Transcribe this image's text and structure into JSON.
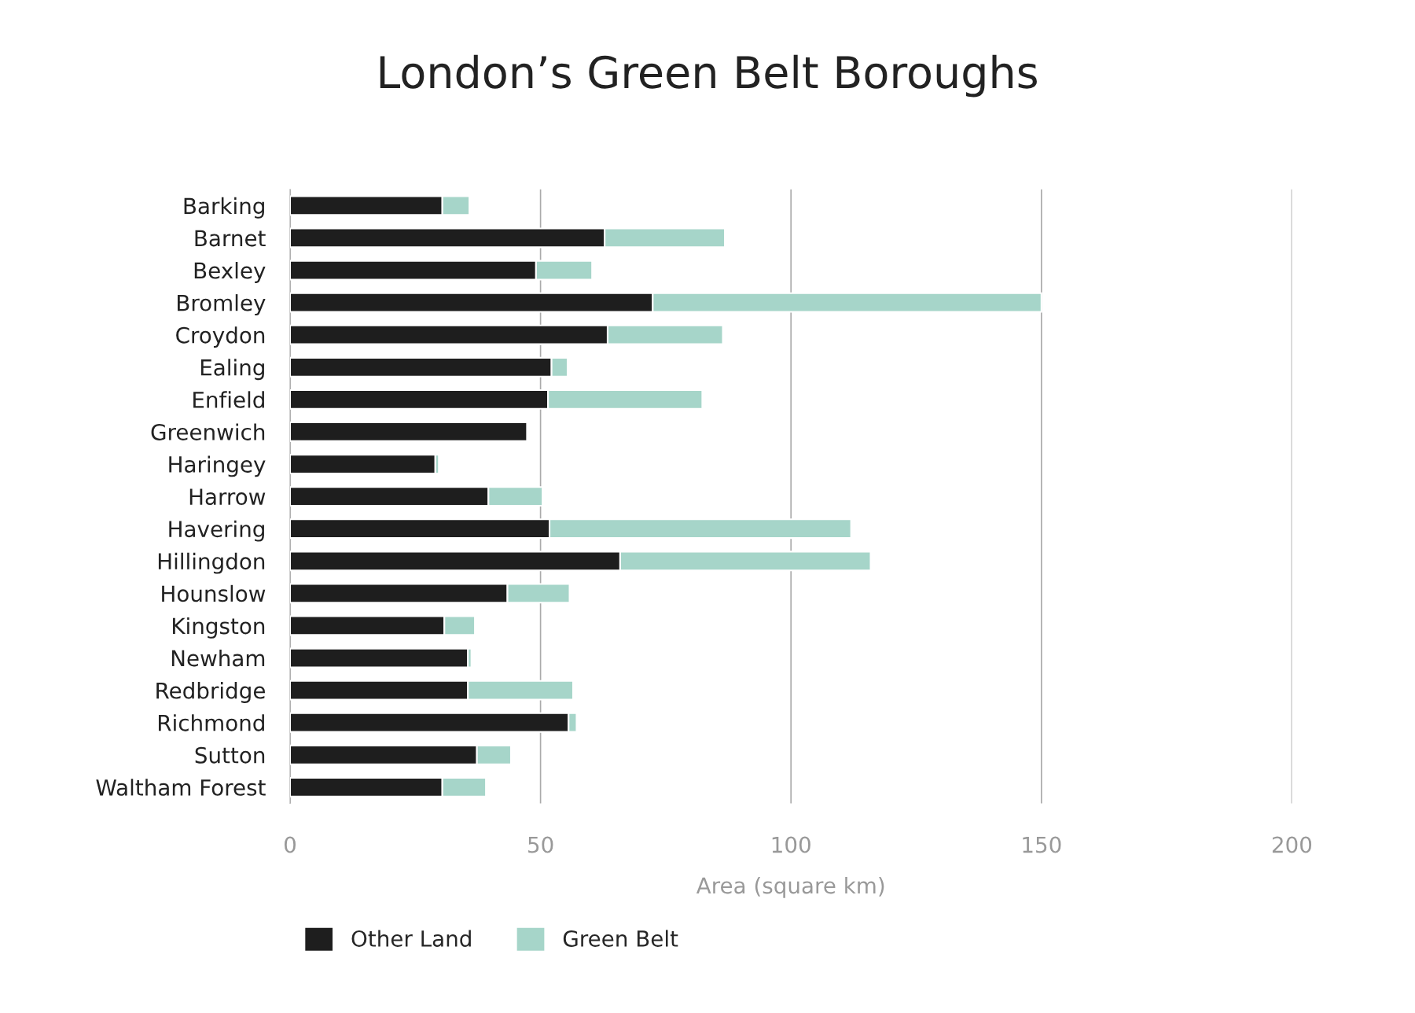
{
  "chart_data": {
    "type": "bar",
    "orientation": "horizontal",
    "stacked": true,
    "title": "London’s Green Belt Boroughs",
    "xlabel": "Area (square km)",
    "categories": [
      "Barking",
      "Barnet",
      "Bexley",
      "Bromley",
      "Croydon",
      "Ealing",
      "Enfield",
      "Greenwich",
      "Haringey",
      "Harrow",
      "Havering",
      "Hillingdon",
      "Hounslow",
      "Kingston",
      "Newham",
      "Redbridge",
      "Richmond",
      "Sutton",
      "Waltham Forest"
    ],
    "series": [
      {
        "name": "Other Land",
        "color": "#1e1e1e",
        "values": [
          30.4,
          62.8,
          49.1,
          72.4,
          63.4,
          52.2,
          51.5,
          47.3,
          29.0,
          39.6,
          51.8,
          65.9,
          43.4,
          30.8,
          35.5,
          35.5,
          55.6,
          37.3,
          30.4
        ]
      },
      {
        "name": "Green Belt",
        "color": "#a6d5c9",
        "values": [
          5.4,
          24.0,
          11.2,
          77.6,
          23.0,
          3.2,
          30.8,
          null,
          0.7,
          10.8,
          60.2,
          50.0,
          12.4,
          6.1,
          0.7,
          21.0,
          1.6,
          6.8,
          8.7
        ]
      }
    ],
    "xlim": [
      0,
      200
    ],
    "xticks": [
      0,
      50,
      100,
      150,
      200
    ],
    "grid": "x",
    "legend": "bottom left"
  }
}
